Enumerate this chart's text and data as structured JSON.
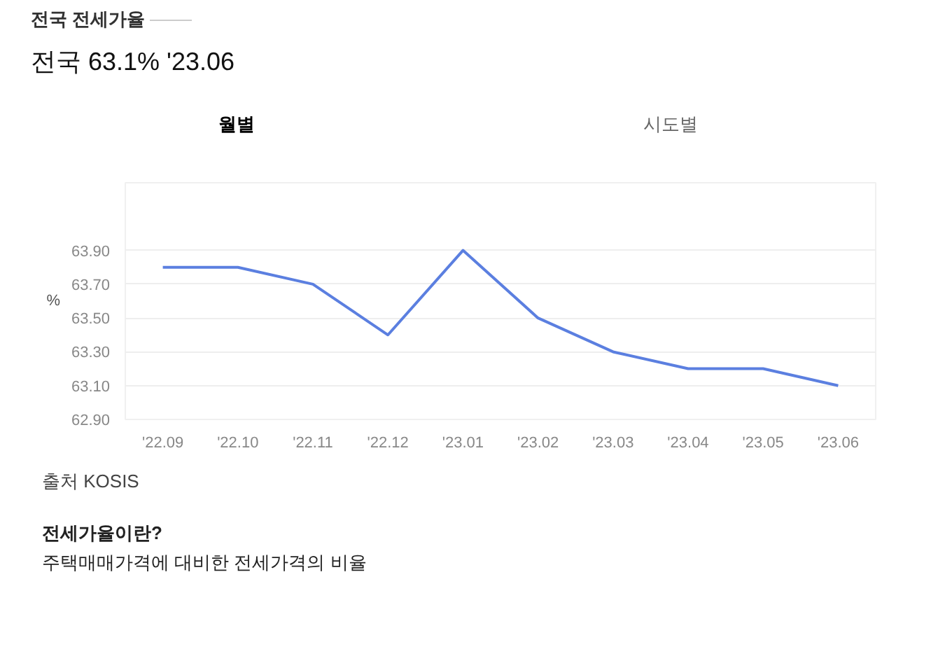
{
  "chart_data": {
    "type": "line",
    "title": "전국 전세가율",
    "subtitle": "전국 63.1% '23.06",
    "ylabel": "%",
    "categories": [
      "'22.09",
      "'22.10",
      "'22.11",
      "'22.12",
      "'23.01",
      "'23.02",
      "'23.03",
      "'23.04",
      "'23.05",
      "'23.06"
    ],
    "series": [
      {
        "color": "#5b7fe0",
        "values": [
          63.8,
          63.8,
          63.7,
          63.4,
          63.9,
          63.5,
          63.3,
          63.2,
          63.2,
          63.1
        ]
      }
    ],
    "ylim": [
      62.9,
      64.3
    ],
    "yticks": [
      {
        "value": 62.9,
        "label": "62.90"
      },
      {
        "value": 63.1,
        "label": "63.10"
      },
      {
        "value": 63.3,
        "label": "63.30"
      },
      {
        "value": 63.5,
        "label": "63.50"
      },
      {
        "value": 63.7,
        "label": "63.70"
      },
      {
        "value": 63.9,
        "label": "63.90"
      }
    ],
    "grid": "y",
    "marker": "none",
    "line_style": "solid",
    "annotations": [
      "월별",
      "시도별",
      "출처 KOSIS",
      "전세가율이란?",
      "주택매매가격에 대비한 전세가격의 비율"
    ]
  }
}
